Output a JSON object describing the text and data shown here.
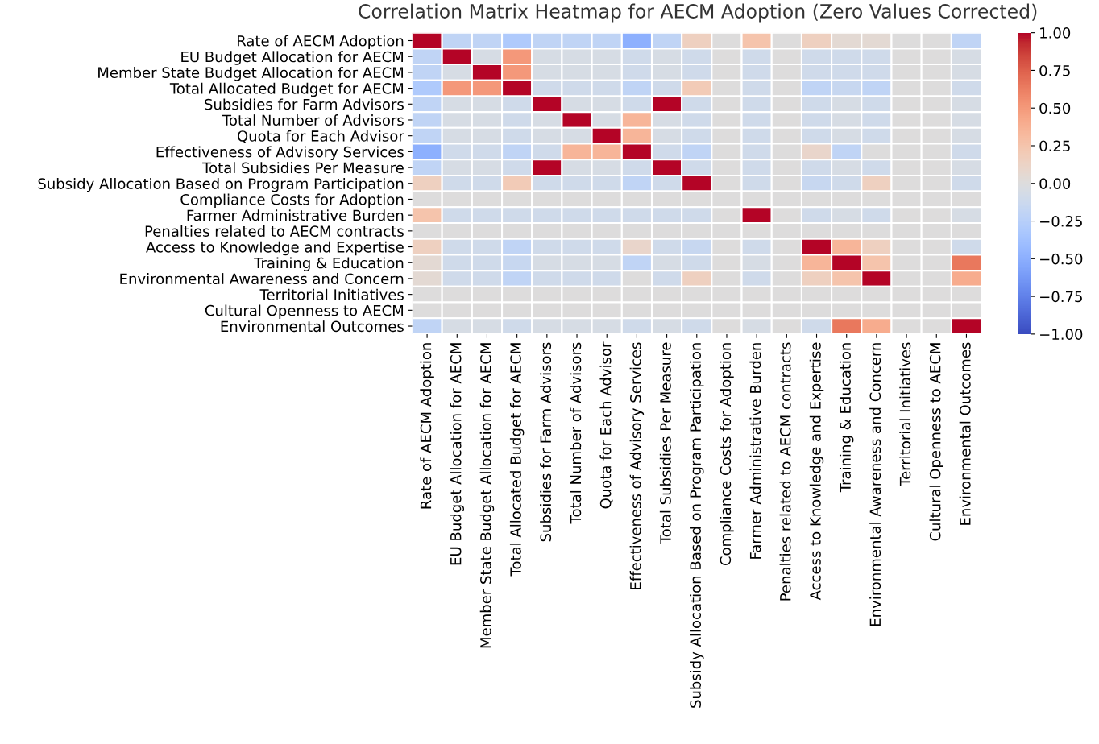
{
  "chart_data": {
    "type": "heatmap",
    "title": "Correlation Matrix Heatmap for AECM Adoption (Zero Values Corrected)",
    "categories": [
      "Rate of AECM Adoption",
      "EU Budget Allocation for AECM",
      "Member State Budget Allocation for AECM",
      "Total Allocated Budget for AECM",
      "Subsidies for Farm Advisors",
      "Total Number of Advisors",
      "Quota for Each Advisor",
      "Effectiveness of Advisory Services",
      "Total Subsidies Per Measure",
      "Subsidy Allocation Based on Program Participation",
      "Compliance Costs for Adoption",
      "Farmer Administrative Burden",
      "Penalties related to AECM contracts",
      "Access to Knowledge and Expertise",
      "Training & Education",
      "Environmental Awareness and Concern",
      "Territorial Initiatives",
      "Cultural Openness to AECM",
      "Environmental Outcomes"
    ],
    "y_categories": [
      "Rate of AECM Adoption",
      "EU Budget Allocation for AECM",
      "Member State Budget Allocation for AECM",
      "Total Allocated Budget for AECM",
      "Subsidies for Farm Advisors",
      "Total Number of Advisors",
      "Quota for Each Advisor",
      "Effectiveness of Advisory Services",
      "Total Subsidies Per Measure",
      "Subsidy Allocation Based on Program Participation",
      "Compliance Costs for Adoption",
      "Farmer Administrative Burden",
      "Penalties related to AECM contracts",
      "Access to Knowledge and Expertise",
      "Training & Education",
      "Environmental Awareness and Concern",
      "Territorial Initiatives",
      "Cultural Openness to AECM",
      "Environmental Outcomes"
    ],
    "cells": [
      [
        1,
        -0.2,
        -0.2,
        -0.3,
        -0.2,
        -0.2,
        -0.2,
        -0.5,
        -0.2,
        0.15,
        0,
        0.25,
        0,
        0.15,
        0.05,
        0.05,
        0,
        0,
        -0.2
      ],
      [
        -0.2,
        1,
        -0.05,
        0.5,
        -0.05,
        -0.05,
        -0.05,
        -0.1,
        -0.05,
        -0.1,
        0,
        -0.1,
        0,
        -0.1,
        -0.1,
        -0.1,
        0,
        0,
        -0.05
      ],
      [
        -0.2,
        -0.05,
        1,
        0.5,
        -0.05,
        -0.05,
        -0.05,
        -0.1,
        -0.05,
        -0.1,
        0,
        -0.1,
        0,
        -0.1,
        -0.1,
        -0.1,
        0,
        0,
        -0.05
      ],
      [
        -0.3,
        0.5,
        0.5,
        1,
        -0.1,
        -0.1,
        -0.1,
        -0.2,
        -0.1,
        0.2,
        0,
        -0.1,
        0,
        -0.2,
        -0.15,
        -0.2,
        0,
        0,
        -0.1
      ],
      [
        -0.2,
        -0.05,
        -0.05,
        -0.1,
        1,
        -0.05,
        -0.05,
        -0.1,
        1,
        -0.1,
        0,
        -0.1,
        0,
        -0.1,
        -0.05,
        -0.1,
        0,
        0,
        -0.05
      ],
      [
        -0.2,
        -0.05,
        -0.05,
        -0.1,
        -0.05,
        1,
        -0.05,
        0.35,
        -0.05,
        -0.1,
        0,
        -0.1,
        0,
        -0.1,
        -0.05,
        -0.1,
        0,
        0,
        -0.05
      ],
      [
        -0.2,
        -0.05,
        -0.05,
        -0.1,
        -0.05,
        -0.05,
        1,
        0.35,
        -0.05,
        -0.1,
        0,
        -0.1,
        0,
        -0.1,
        -0.05,
        -0.1,
        0,
        0,
        -0.05
      ],
      [
        -0.5,
        -0.1,
        -0.1,
        -0.2,
        -0.1,
        0.35,
        0.35,
        1,
        -0.1,
        -0.2,
        0,
        -0.1,
        0,
        0.1,
        -0.2,
        0,
        0,
        0,
        -0.1
      ],
      [
        -0.2,
        -0.05,
        -0.05,
        -0.1,
        1,
        -0.05,
        -0.05,
        -0.1,
        1,
        -0.1,
        0,
        -0.1,
        0,
        -0.1,
        -0.05,
        -0.1,
        0,
        0,
        -0.05
      ],
      [
        0.15,
        -0.1,
        -0.1,
        0.2,
        -0.1,
        -0.1,
        -0.1,
        -0.2,
        -0.1,
        1,
        0,
        -0.1,
        0,
        -0.15,
        -0.1,
        0.15,
        0,
        0,
        -0.1
      ],
      [
        0,
        0,
        0,
        0,
        0,
        0,
        0,
        0,
        0,
        0,
        0,
        0,
        0,
        0,
        0,
        0,
        0,
        0,
        0
      ],
      [
        0.25,
        -0.1,
        -0.1,
        -0.1,
        -0.1,
        -0.1,
        -0.1,
        -0.1,
        -0.1,
        -0.1,
        0,
        1,
        0,
        -0.1,
        -0.05,
        -0.1,
        0,
        0,
        -0.05
      ],
      [
        0,
        0,
        0,
        0,
        0,
        0,
        0,
        0,
        0,
        0,
        0,
        0,
        0,
        0,
        0,
        0,
        0,
        0,
        0
      ],
      [
        0.15,
        -0.1,
        -0.1,
        -0.2,
        -0.1,
        -0.1,
        -0.1,
        0.1,
        -0.1,
        -0.15,
        0,
        -0.1,
        0,
        1,
        0.35,
        0.15,
        0,
        0,
        -0.1
      ],
      [
        0.05,
        -0.1,
        -0.1,
        -0.15,
        -0.05,
        -0.05,
        -0.05,
        -0.2,
        -0.05,
        -0.1,
        0,
        -0.05,
        0,
        0.35,
        1,
        0.25,
        0,
        0,
        0.65
      ],
      [
        0.05,
        -0.1,
        -0.1,
        -0.2,
        -0.1,
        -0.1,
        -0.1,
        0,
        -0.1,
        0.15,
        0,
        -0.1,
        0,
        0.15,
        0.25,
        1,
        0,
        0,
        0.4
      ],
      [
        0,
        0,
        0,
        0,
        0,
        0,
        0,
        0,
        0,
        0,
        0,
        0,
        0,
        0,
        0,
        0,
        0,
        0,
        0
      ],
      [
        0,
        0,
        0,
        0,
        0,
        0,
        0,
        0,
        0,
        0,
        0,
        0,
        0,
        0,
        0,
        0,
        0,
        0,
        0
      ],
      [
        -0.2,
        -0.05,
        -0.05,
        -0.1,
        -0.05,
        -0.05,
        -0.05,
        -0.1,
        -0.05,
        -0.1,
        0,
        -0.05,
        0,
        -0.1,
        0.65,
        0.4,
        0,
        0,
        1
      ]
    ],
    "clim": [
      -1,
      1
    ],
    "cticks": [
      {
        "value": 1,
        "label": "1.00"
      },
      {
        "value": 0.75,
        "label": "0.75"
      },
      {
        "value": 0.5,
        "label": "0.50"
      },
      {
        "value": 0.25,
        "label": "0.25"
      },
      {
        "value": 0,
        "label": "0.00"
      },
      {
        "value": -0.25,
        "label": "−0.25"
      },
      {
        "value": -0.5,
        "label": "−0.50"
      },
      {
        "value": -0.75,
        "label": "−0.75"
      },
      {
        "value": -1,
        "label": "−1.00"
      }
    ]
  }
}
